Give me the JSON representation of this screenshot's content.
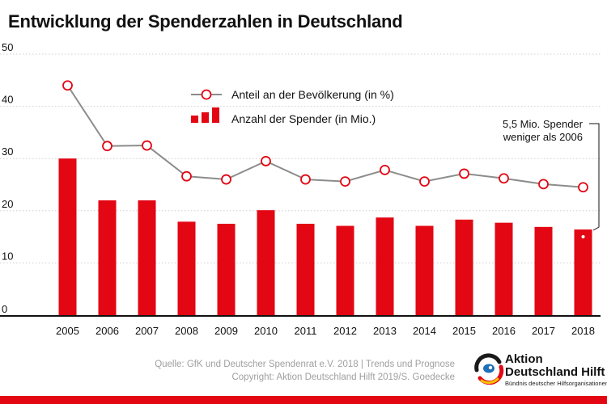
{
  "colors": {
    "bar": "#e30613",
    "line": "#8c8c8c",
    "marker_stroke": "#e30613",
    "grid": "#cfcfcf",
    "axis": "#111111",
    "logo_red": "#e30613",
    "logo_blue": "#1d6fb8",
    "logo_yellow": "#f5c400",
    "logo_dark": "#1a1a1a"
  },
  "chart_data": {
    "type": "bar",
    "title": "Entwicklung der Spenderzahlen in Deutschland",
    "categories": [
      "2005",
      "2006",
      "2007",
      "2008",
      "2009",
      "2010",
      "2011",
      "2012",
      "2013",
      "2014",
      "2015",
      "2016",
      "2017",
      "2018"
    ],
    "series": [
      {
        "name": "Anzahl der Spender (in Mio.)",
        "type": "bar",
        "values": [
          30.0,
          22.0,
          22.0,
          17.9,
          17.5,
          20.1,
          17.5,
          17.1,
          18.7,
          17.1,
          18.3,
          17.7,
          16.9,
          16.4
        ]
      },
      {
        "name": "Anteil an der Bevölkerung (in %)",
        "type": "line",
        "values": [
          44.0,
          32.4,
          32.5,
          26.6,
          26.0,
          29.5,
          26.0,
          25.6,
          27.8,
          25.6,
          27.1,
          26.2,
          25.1,
          24.5
        ]
      }
    ],
    "ylim": [
      0,
      50
    ],
    "yticks": [
      "50",
      "40",
      "30",
      "20",
      "10",
      "0"
    ],
    "ytick_values": [
      50,
      40,
      30,
      20,
      10,
      0
    ],
    "grid": true,
    "legend_position": "top-center",
    "annotation": {
      "line1": "5,5 Mio. Spender",
      "line2": "weniger als 2006",
      "from_category": "2006",
      "to_category": "2018"
    }
  },
  "footer": {
    "source_line1": "Quelle: GfK und Deutscher Spendenrat e.V. 2018 | Trends und Prognose",
    "source_line2": "Copyright: Aktion Deutschland Hilft 2019/S. Goedecke"
  },
  "logo": {
    "line1": "Aktion",
    "line2": "Deutschland Hilft",
    "line3": "Bündnis deutscher Hilfsorganisationen"
  }
}
